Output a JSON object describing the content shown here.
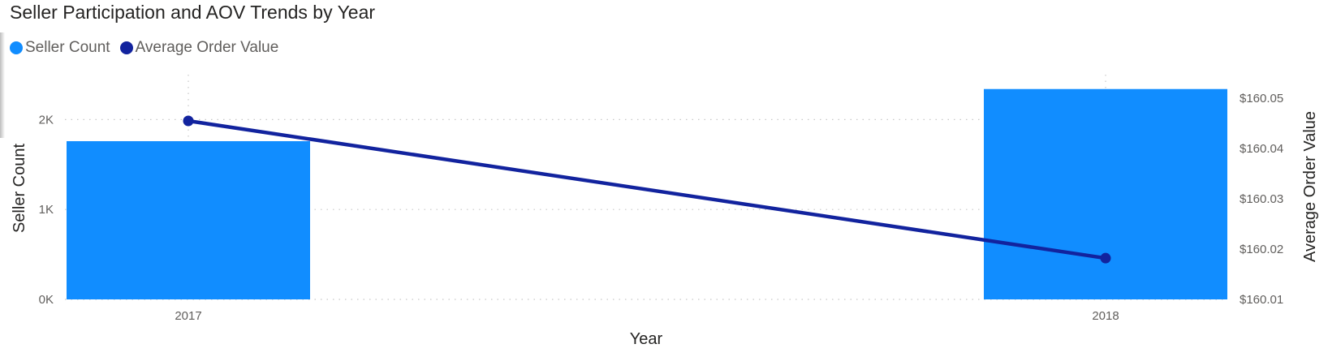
{
  "title": "Seller Participation and AOV Trends by Year",
  "colors": {
    "bar": "#118DFF",
    "line": "#12239E",
    "grid": "#c8c8c8"
  },
  "legend": [
    {
      "label": "Seller Count",
      "color": "#118DFF"
    },
    {
      "label": "Average Order Value",
      "color": "#12239E"
    }
  ],
  "chart_data": {
    "type": "bar",
    "combo": "bar-line",
    "xlabel": "Year",
    "ylabel": "Seller Count",
    "y2label": "Average Order Value",
    "categories": [
      "2017",
      "2018"
    ],
    "ylim": [
      0,
      2500
    ],
    "y2lim": [
      160.01,
      160.0547
    ],
    "yticks": [
      {
        "value": 0,
        "label": "0K"
      },
      {
        "value": 1000,
        "label": "1K"
      },
      {
        "value": 2000,
        "label": "2K"
      }
    ],
    "y2ticks": [
      {
        "value": 160.01,
        "label": "$160.01"
      },
      {
        "value": 160.02,
        "label": "$160.02"
      },
      {
        "value": 160.03,
        "label": "$160.03"
      },
      {
        "value": 160.04,
        "label": "$160.04"
      },
      {
        "value": 160.05,
        "label": "$160.05"
      }
    ],
    "series": [
      {
        "name": "Seller Count",
        "type": "bar",
        "axis": "left",
        "values": [
          1760,
          2340
        ]
      },
      {
        "name": "Average Order Value",
        "type": "line",
        "axis": "right",
        "values": [
          160.0455,
          160.0182
        ]
      }
    ],
    "grid": true,
    "legend_position": "top-left"
  }
}
